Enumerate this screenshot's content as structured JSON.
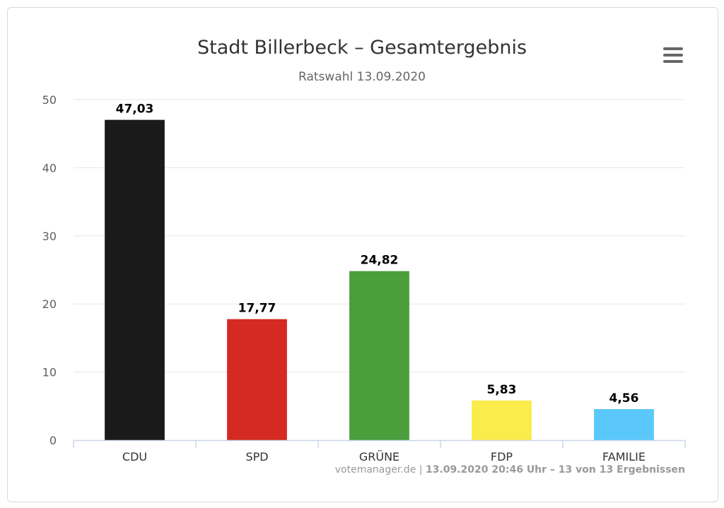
{
  "header": {
    "title": "Stadt Billerbeck – Gesamtergebnis",
    "subtitle": "Ratswahl 13.09.2020",
    "menu_icon": "hamburger-menu-icon"
  },
  "credits": {
    "source": "votemanager.de",
    "separator": " | ",
    "status": "13.09.2020 20:46 Uhr – 13 von 13 Ergebnissen"
  },
  "chart_data": {
    "type": "bar",
    "title": "Stadt Billerbeck – Gesamtergebnis",
    "subtitle": "Ratswahl 13.09.2020",
    "categories": [
      "CDU",
      "SPD",
      "GRÜNE",
      "FDP",
      "FAMILIE"
    ],
    "values": [
      47.03,
      17.77,
      24.82,
      5.83,
      4.56
    ],
    "value_labels": [
      "47,03",
      "17,77",
      "24,82",
      "5,83",
      "4,56"
    ],
    "colors": [
      "#1a1a1a",
      "#d42a22",
      "#4a9e3c",
      "#f9ec4b",
      "#5ac8fa"
    ],
    "ylim": [
      0,
      50
    ],
    "yticks": [
      0,
      10,
      20,
      30,
      40,
      50
    ],
    "xlabel": "",
    "ylabel": "",
    "grid": true,
    "legend": "none"
  }
}
